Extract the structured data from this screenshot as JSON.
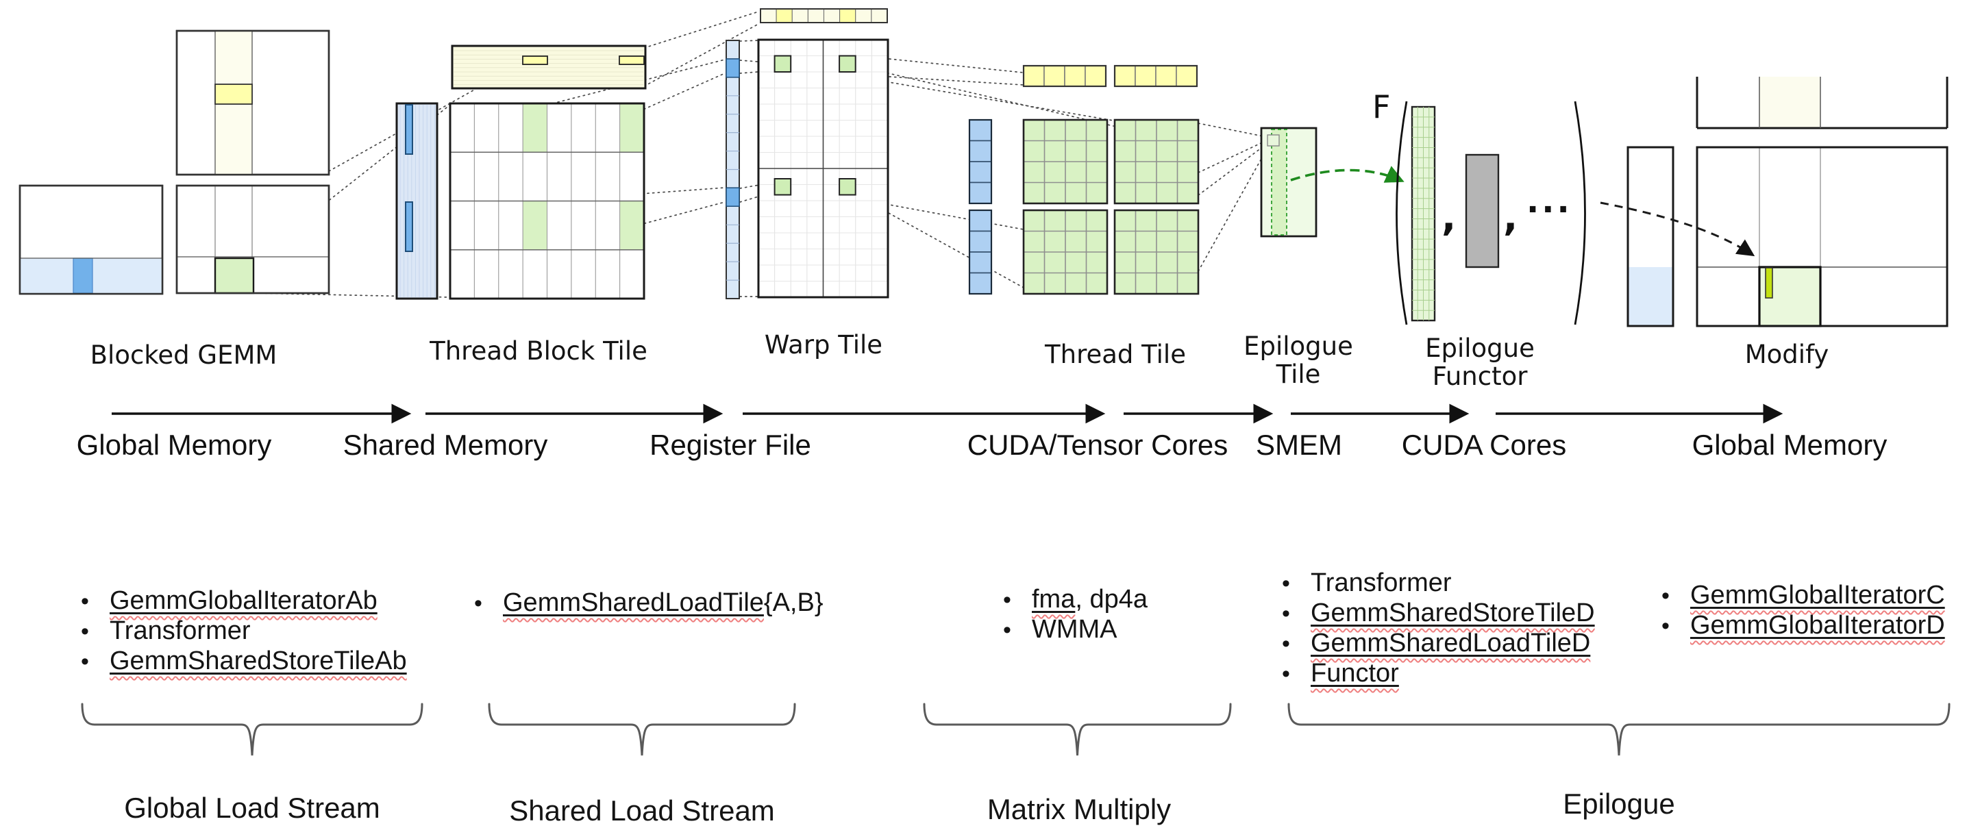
{
  "diagram_labels": {
    "blocked_gemm": "Blocked GEMM",
    "thread_block_tile": "Thread Block Tile",
    "warp_tile": "Warp Tile",
    "thread_tile": "Thread Tile",
    "epilogue_tile_l1": "Epilogue",
    "epilogue_tile_l2": "Tile",
    "epilogue_functor_l1": "Epilogue",
    "epilogue_functor_l2": "Functor",
    "modify": "Modify"
  },
  "memory_flow": {
    "global_memory_left": "Global Memory",
    "shared_memory": "Shared Memory",
    "register_file": "Register File",
    "cuda_tensor_cores": "CUDA/Tensor Cores",
    "smem": "SMEM",
    "cuda_cores": "CUDA Cores",
    "global_memory_right": "Global Memory"
  },
  "functor_notation": {
    "f": "F",
    "comma1": ",",
    "comma2": ",",
    "ellipsis": "···"
  },
  "stream_labels": {
    "global_load_stream": "Global Load Stream",
    "shared_load_stream": "Shared Load Stream",
    "matrix_multiply": "Matrix Multiply",
    "epilogue": "Epilogue"
  },
  "bullet_groups": {
    "global_load": [
      [
        {
          "t": "GemmGlobalIteratorAb",
          "u": true
        }
      ],
      [
        {
          "t": "Transformer",
          "u": false
        }
      ],
      [
        {
          "t": "GemmSharedStoreTileAb",
          "u": true
        }
      ]
    ],
    "shared_load": [
      [
        {
          "t": "GemmSharedLoadTile",
          "u": true
        },
        {
          "t": "{A,B}",
          "u": false
        }
      ]
    ],
    "matrix_multiply": [
      [
        {
          "t": "fma",
          "u": true
        },
        {
          "t": ", dp4a",
          "u": false
        }
      ],
      [
        {
          "t": "WMMA",
          "u": false
        }
      ]
    ],
    "epilogue_main": [
      [
        {
          "t": "Transformer",
          "u": false
        }
      ],
      [
        {
          "t": "GemmSharedStoreTileD",
          "u": true
        }
      ],
      [
        {
          "t": "GemmSharedLoadTileD",
          "u": true
        }
      ],
      [
        {
          "t": "Functor",
          "u": true
        }
      ]
    ],
    "epilogue_out": [
      [
        {
          "t": "GemmGlobalIteratorC",
          "u": true
        }
      ],
      [
        {
          "t": "GemmGlobalIteratorD",
          "u": true
        }
      ]
    ]
  },
  "colors": {
    "highlight_blue": "#72b1ea",
    "light_blue": "#ddebfa",
    "register_blue": "#d9e8f8",
    "thread_blue": "#aed0f2",
    "pale_yellow": "#fdfdee",
    "bright_yellow": "#ffffac",
    "pale_green": "#effae6",
    "green": "#d9f2c4",
    "warp_green": "#cfeeb6",
    "chartreuse": "#c3e112",
    "gray_block": "#b5b5b5",
    "arrow_green": "#1e8a1e",
    "squiggle_red": "#ef8080"
  }
}
